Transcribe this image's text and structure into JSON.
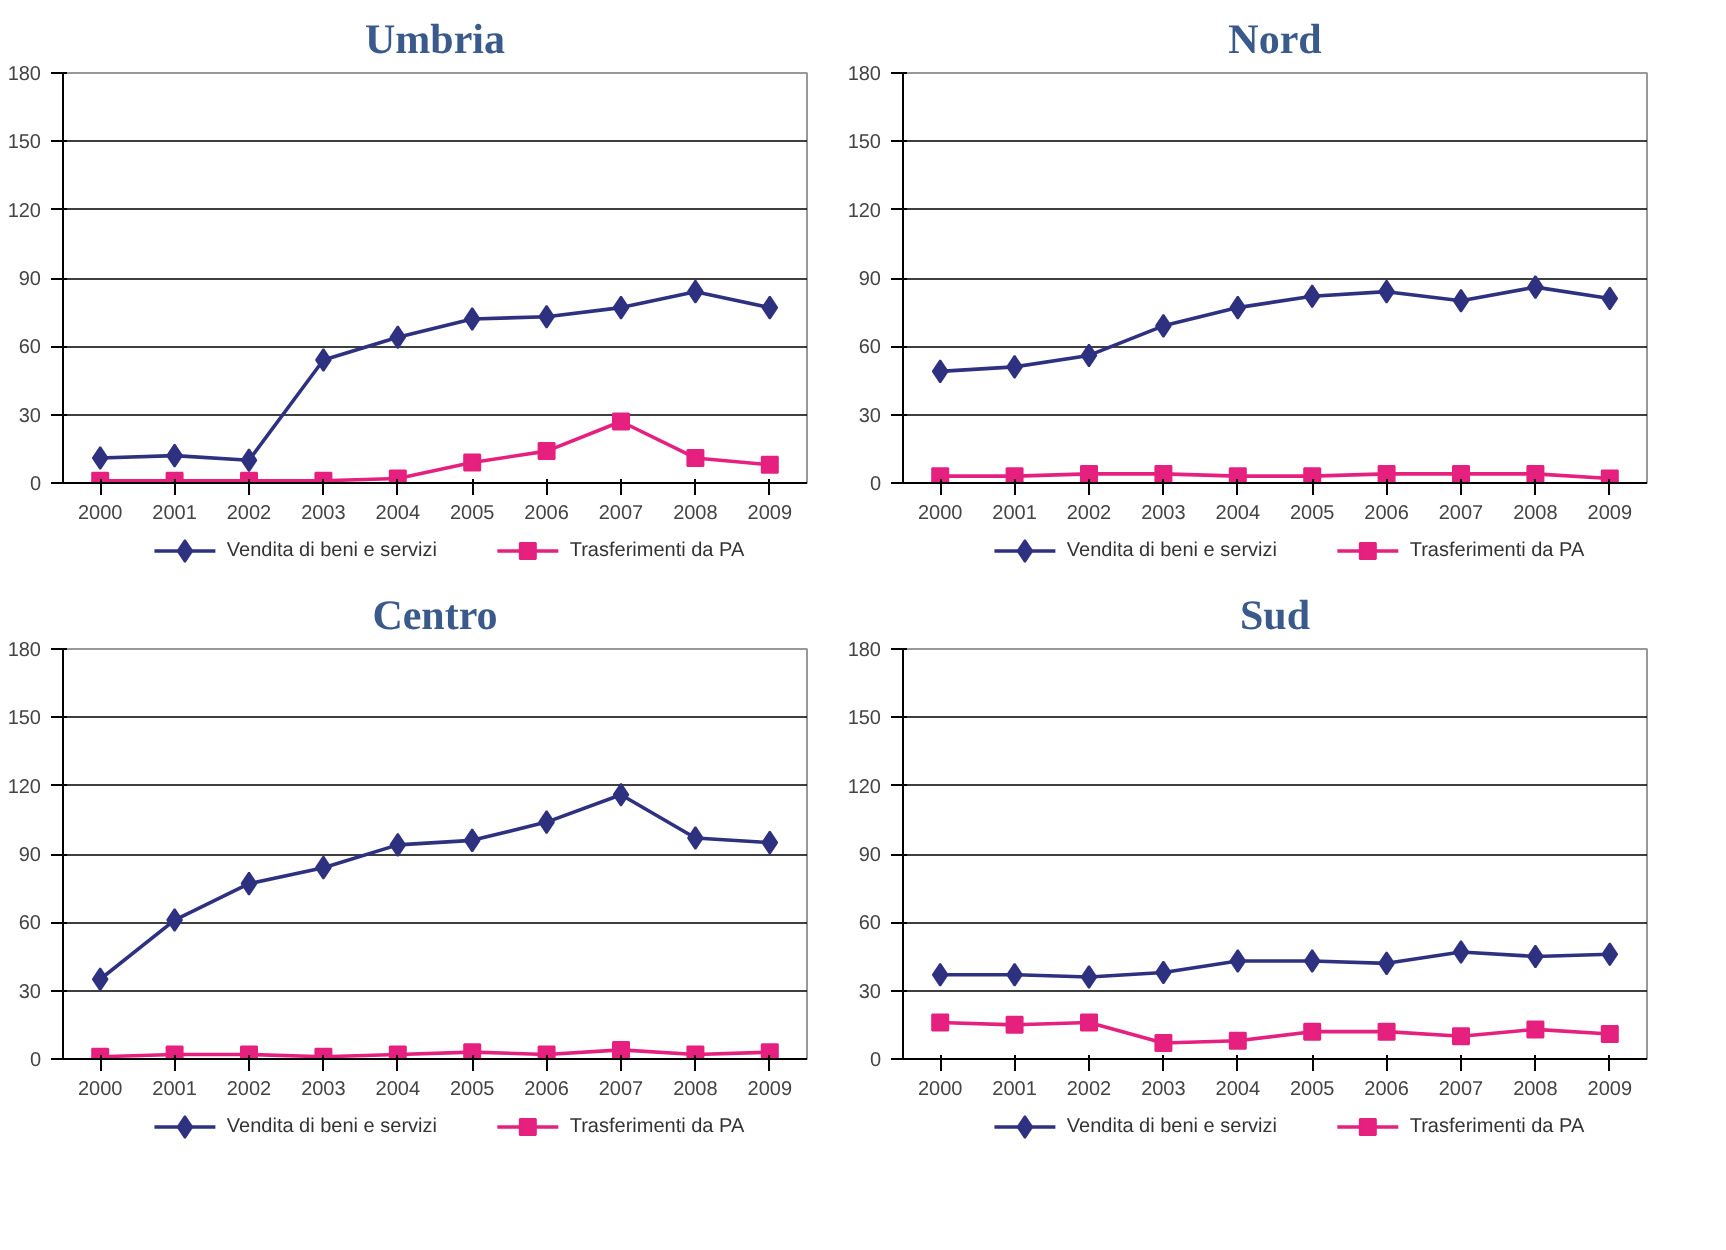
{
  "chart_data": [
    {
      "type": "line",
      "title": "Umbria",
      "categories": [
        "2000",
        "2001",
        "2002",
        "2003",
        "2004",
        "2005",
        "2006",
        "2007",
        "2008",
        "2009"
      ],
      "ylim": [
        0,
        180
      ],
      "yticks": [
        0,
        30,
        60,
        90,
        120,
        150,
        180
      ],
      "grid": "y",
      "legend": "bottom",
      "series": [
        {
          "name": "Vendita di beni e servizi",
          "color": "#2e3180",
          "marker": "diamond",
          "values": [
            11,
            12,
            10,
            54,
            64,
            72,
            73,
            77,
            84,
            77
          ]
        },
        {
          "name": "Trasferimenti da PA",
          "color": "#e6207f",
          "marker": "square",
          "values": [
            1,
            1,
            1,
            1,
            2,
            9,
            14,
            27,
            11,
            8
          ]
        }
      ]
    },
    {
      "type": "line",
      "title": "Nord",
      "categories": [
        "2000",
        "2001",
        "2002",
        "2003",
        "2004",
        "2005",
        "2006",
        "2007",
        "2008",
        "2009"
      ],
      "ylim": [
        0,
        180
      ],
      "yticks": [
        0,
        30,
        60,
        90,
        120,
        150,
        180
      ],
      "grid": "y",
      "legend": "bottom",
      "series": [
        {
          "name": "Vendita di beni e servizi",
          "color": "#2e3180",
          "marker": "diamond",
          "values": [
            49,
            51,
            56,
            69,
            77,
            82,
            84,
            80,
            86,
            81
          ]
        },
        {
          "name": "Trasferimenti da PA",
          "color": "#e6207f",
          "marker": "square",
          "values": [
            3,
            3,
            4,
            4,
            3,
            3,
            4,
            4,
            4,
            2
          ]
        }
      ]
    },
    {
      "type": "line",
      "title": "Centro",
      "categories": [
        "2000",
        "2001",
        "2002",
        "2003",
        "2004",
        "2005",
        "2006",
        "2007",
        "2008",
        "2009"
      ],
      "ylim": [
        0,
        180
      ],
      "yticks": [
        0,
        30,
        60,
        90,
        120,
        150,
        180
      ],
      "grid": "y",
      "legend": "bottom",
      "series": [
        {
          "name": "Vendita di beni e servizi",
          "color": "#2e3180",
          "marker": "diamond",
          "values": [
            35,
            61,
            77,
            84,
            94,
            96,
            104,
            116,
            97,
            95
          ]
        },
        {
          "name": "Trasferimenti da PA",
          "color": "#e6207f",
          "marker": "square",
          "values": [
            1,
            2,
            2,
            1,
            2,
            3,
            2,
            4,
            2,
            3
          ]
        }
      ]
    },
    {
      "type": "line",
      "title": "Sud",
      "categories": [
        "2000",
        "2001",
        "2002",
        "2003",
        "2004",
        "2005",
        "2006",
        "2007",
        "2008",
        "2009"
      ],
      "ylim": [
        0,
        180
      ],
      "yticks": [
        0,
        30,
        60,
        90,
        120,
        150,
        180
      ],
      "grid": "y",
      "legend": "bottom",
      "series": [
        {
          "name": "Vendita di beni e servizi",
          "color": "#2e3180",
          "marker": "diamond",
          "values": [
            37,
            37,
            36,
            38,
            43,
            43,
            42,
            47,
            45,
            46
          ]
        },
        {
          "name": "Trasferimenti da PA",
          "color": "#e6207f",
          "marker": "square",
          "values": [
            16,
            15,
            16,
            7,
            8,
            12,
            12,
            10,
            13,
            11
          ]
        }
      ]
    }
  ]
}
